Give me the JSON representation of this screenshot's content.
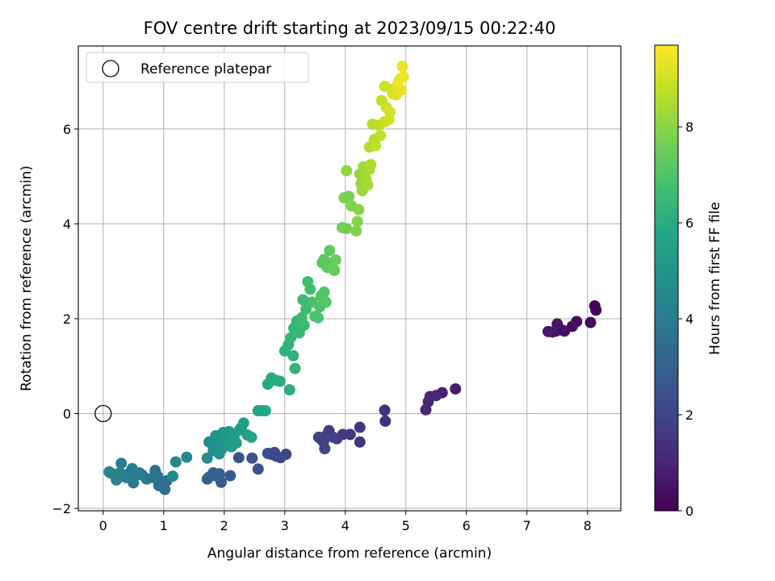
{
  "chart_data": {
    "type": "scatter",
    "title": "FOV centre drift starting at 2023/09/15 00:22:40",
    "xlabel": "Angular distance from reference (arcmin)",
    "ylabel": "Rotation from reference (arcmin)",
    "xlim": [
      -0.41,
      8.55
    ],
    "ylim": [
      -2.05,
      7.75
    ],
    "xticks": [
      0,
      1,
      2,
      3,
      4,
      5,
      6,
      7,
      8
    ],
    "yticks": [
      -2,
      0,
      2,
      4,
      6
    ],
    "grid": true,
    "legend": {
      "position": "top-left",
      "entries": [
        {
          "label": "Reference platepar",
          "marker": "open-circle"
        }
      ]
    },
    "reference_point": {
      "x": 0,
      "y": 0
    },
    "colorbar": {
      "label": "Hours from first FF file",
      "colormap": "viridis",
      "range": [
        0,
        9.7
      ],
      "ticks": [
        0,
        2,
        4,
        6,
        8
      ]
    },
    "points": [
      {
        "x": 8.12,
        "y": 2.27,
        "h": 0.05
      },
      {
        "x": 8.14,
        "y": 2.18,
        "h": 0.1
      },
      {
        "x": 8.05,
        "y": 1.92,
        "h": 0.2
      },
      {
        "x": 7.82,
        "y": 1.94,
        "h": 0.3
      },
      {
        "x": 7.75,
        "y": 1.84,
        "h": 0.35
      },
      {
        "x": 7.58,
        "y": 1.76,
        "h": 0.45
      },
      {
        "x": 7.5,
        "y": 1.89,
        "h": 0.5
      },
      {
        "x": 7.48,
        "y": 1.74,
        "h": 0.55
      },
      {
        "x": 7.42,
        "y": 1.72,
        "h": 0.6
      },
      {
        "x": 7.35,
        "y": 1.73,
        "h": 0.65
      },
      {
        "x": 7.62,
        "y": 1.74,
        "h": 0.4
      },
      {
        "x": 5.82,
        "y": 0.52,
        "h": 0.8
      },
      {
        "x": 5.6,
        "y": 0.44,
        "h": 0.9
      },
      {
        "x": 5.5,
        "y": 0.38,
        "h": 1.0
      },
      {
        "x": 5.4,
        "y": 0.36,
        "h": 1.05
      },
      {
        "x": 5.37,
        "y": 0.25,
        "h": 1.1
      },
      {
        "x": 5.33,
        "y": 0.08,
        "h": 1.15
      },
      {
        "x": 4.65,
        "y": 0.07,
        "h": 1.3
      },
      {
        "x": 4.66,
        "y": -0.16,
        "h": 1.35
      },
      {
        "x": 4.24,
        "y": -0.29,
        "h": 1.45
      },
      {
        "x": 4.24,
        "y": -0.6,
        "h": 1.5
      },
      {
        "x": 4.08,
        "y": -0.44,
        "h": 1.55
      },
      {
        "x": 3.96,
        "y": -0.44,
        "h": 1.6
      },
      {
        "x": 3.86,
        "y": -0.53,
        "h": 1.65
      },
      {
        "x": 3.73,
        "y": -0.36,
        "h": 1.7
      },
      {
        "x": 3.68,
        "y": -0.47,
        "h": 1.75
      },
      {
        "x": 3.64,
        "y": -0.6,
        "h": 1.8
      },
      {
        "x": 3.6,
        "y": -0.54,
        "h": 1.85
      },
      {
        "x": 3.56,
        "y": -0.5,
        "h": 1.9
      },
      {
        "x": 3.66,
        "y": -0.74,
        "h": 1.95
      },
      {
        "x": 3.8,
        "y": -0.5,
        "h": 1.9
      },
      {
        "x": 3.72,
        "y": -0.45,
        "h": 1.85
      },
      {
        "x": 3.02,
        "y": -0.86,
        "h": 2.05
      },
      {
        "x": 2.93,
        "y": -0.93,
        "h": 2.1
      },
      {
        "x": 2.83,
        "y": -0.82,
        "h": 2.15
      },
      {
        "x": 2.78,
        "y": -0.86,
        "h": 2.2
      },
      {
        "x": 2.72,
        "y": -0.84,
        "h": 2.25
      },
      {
        "x": 2.86,
        "y": -0.9,
        "h": 2.1
      },
      {
        "x": 2.56,
        "y": -1.17,
        "h": 2.4
      },
      {
        "x": 2.46,
        "y": -0.94,
        "h": 2.45
      },
      {
        "x": 2.24,
        "y": -0.93,
        "h": 2.6
      },
      {
        "x": 2.1,
        "y": -1.31,
        "h": 2.75
      },
      {
        "x": 1.95,
        "y": -1.45,
        "h": 2.85
      },
      {
        "x": 1.88,
        "y": -1.32,
        "h": 2.9
      },
      {
        "x": 1.82,
        "y": -1.25,
        "h": 3.0
      },
      {
        "x": 1.75,
        "y": -1.34,
        "h": 3.05
      },
      {
        "x": 1.72,
        "y": -1.38,
        "h": 3.1
      },
      {
        "x": 1.92,
        "y": -1.27,
        "h": 3.0
      },
      {
        "x": 1.02,
        "y": -1.6,
        "h": 3.5
      },
      {
        "x": 1.0,
        "y": -1.45,
        "h": 3.55
      },
      {
        "x": 0.92,
        "y": -1.52,
        "h": 3.6
      },
      {
        "x": 0.9,
        "y": -1.32,
        "h": 3.65
      },
      {
        "x": 0.86,
        "y": -1.2,
        "h": 3.7
      },
      {
        "x": 0.82,
        "y": -1.35,
        "h": 3.75
      },
      {
        "x": 0.72,
        "y": -1.38,
        "h": 3.8
      },
      {
        "x": 0.65,
        "y": -1.3,
        "h": 3.85
      },
      {
        "x": 0.55,
        "y": -1.3,
        "h": 3.9
      },
      {
        "x": 0.5,
        "y": -1.46,
        "h": 3.95
      },
      {
        "x": 0.48,
        "y": -1.16,
        "h": 4.0
      },
      {
        "x": 0.44,
        "y": -1.25,
        "h": 4.05
      },
      {
        "x": 0.38,
        "y": -1.35,
        "h": 4.1
      },
      {
        "x": 0.3,
        "y": -1.05,
        "h": 4.15
      },
      {
        "x": 0.28,
        "y": -1.25,
        "h": 4.2
      },
      {
        "x": 0.22,
        "y": -1.4,
        "h": 4.25
      },
      {
        "x": 0.18,
        "y": -1.28,
        "h": 4.3
      },
      {
        "x": 0.12,
        "y": -1.25,
        "h": 4.35
      },
      {
        "x": 0.1,
        "y": -1.23,
        "h": 4.4
      },
      {
        "x": 0.6,
        "y": -1.25,
        "h": 4.0
      },
      {
        "x": 1.05,
        "y": -1.42,
        "h": 3.55
      },
      {
        "x": 1.15,
        "y": -1.32,
        "h": 4.45
      },
      {
        "x": 1.2,
        "y": -1.02,
        "h": 4.5
      },
      {
        "x": 1.38,
        "y": -0.92,
        "h": 4.55
      },
      {
        "x": 1.72,
        "y": -0.94,
        "h": 4.7
      },
      {
        "x": 1.75,
        "y": -0.6,
        "h": 4.75
      },
      {
        "x": 1.82,
        "y": -0.78,
        "h": 4.8
      },
      {
        "x": 1.86,
        "y": -0.47,
        "h": 4.85
      },
      {
        "x": 1.9,
        "y": -0.65,
        "h": 4.9
      },
      {
        "x": 1.92,
        "y": -0.85,
        "h": 4.95
      },
      {
        "x": 1.96,
        "y": -0.75,
        "h": 5.0
      },
      {
        "x": 2.0,
        "y": -0.55,
        "h": 5.05
      },
      {
        "x": 2.03,
        "y": -0.45,
        "h": 5.1
      },
      {
        "x": 2.05,
        "y": -0.62,
        "h": 5.15
      },
      {
        "x": 2.08,
        "y": -0.38,
        "h": 5.2
      },
      {
        "x": 2.12,
        "y": -0.7,
        "h": 5.25
      },
      {
        "x": 2.16,
        "y": -0.48,
        "h": 5.3
      },
      {
        "x": 2.2,
        "y": -0.62,
        "h": 5.35
      },
      {
        "x": 2.25,
        "y": -0.35,
        "h": 5.4
      },
      {
        "x": 2.32,
        "y": -0.2,
        "h": 5.45
      },
      {
        "x": 2.38,
        "y": -0.45,
        "h": 5.5
      },
      {
        "x": 2.45,
        "y": -0.5,
        "h": 5.55
      },
      {
        "x": 1.98,
        "y": -0.4,
        "h": 5.1
      },
      {
        "x": 2.28,
        "y": -0.3,
        "h": 5.4
      },
      {
        "x": 2.56,
        "y": 0.06,
        "h": 5.7
      },
      {
        "x": 2.62,
        "y": 0.06,
        "h": 5.75
      },
      {
        "x": 2.68,
        "y": 0.06,
        "h": 5.8
      },
      {
        "x": 2.72,
        "y": 0.62,
        "h": 5.9
      },
      {
        "x": 2.78,
        "y": 0.75,
        "h": 5.95
      },
      {
        "x": 2.86,
        "y": 0.7,
        "h": 6.0
      },
      {
        "x": 2.92,
        "y": 0.68,
        "h": 6.05
      },
      {
        "x": 3.08,
        "y": 0.5,
        "h": 6.1
      },
      {
        "x": 3.0,
        "y": 1.32,
        "h": 6.15
      },
      {
        "x": 3.06,
        "y": 1.45,
        "h": 6.2
      },
      {
        "x": 3.14,
        "y": 1.22,
        "h": 6.25
      },
      {
        "x": 3.17,
        "y": 0.95,
        "h": 6.3
      },
      {
        "x": 3.1,
        "y": 1.6,
        "h": 6.35
      },
      {
        "x": 3.15,
        "y": 1.8,
        "h": 6.4
      },
      {
        "x": 3.2,
        "y": 1.95,
        "h": 6.45
      },
      {
        "x": 3.24,
        "y": 1.7,
        "h": 6.5
      },
      {
        "x": 3.28,
        "y": 2.02,
        "h": 6.55
      },
      {
        "x": 3.32,
        "y": 1.86,
        "h": 6.6
      },
      {
        "x": 3.35,
        "y": 2.2,
        "h": 6.65
      },
      {
        "x": 3.38,
        "y": 2.78,
        "h": 6.7
      },
      {
        "x": 3.42,
        "y": 2.62,
        "h": 6.75
      },
      {
        "x": 3.45,
        "y": 2.35,
        "h": 6.8
      },
      {
        "x": 3.5,
        "y": 2.05,
        "h": 6.85
      },
      {
        "x": 3.55,
        "y": 2.02,
        "h": 6.9
      },
      {
        "x": 3.58,
        "y": 2.25,
        "h": 6.95
      },
      {
        "x": 3.6,
        "y": 2.48,
        "h": 7.0
      },
      {
        "x": 3.65,
        "y": 2.56,
        "h": 7.05
      },
      {
        "x": 3.68,
        "y": 2.35,
        "h": 7.1
      },
      {
        "x": 3.62,
        "y": 3.18,
        "h": 7.15
      },
      {
        "x": 3.65,
        "y": 3.25,
        "h": 7.2
      },
      {
        "x": 3.7,
        "y": 3.08,
        "h": 7.25
      },
      {
        "x": 3.74,
        "y": 3.44,
        "h": 7.3
      },
      {
        "x": 3.78,
        "y": 3.18,
        "h": 7.35
      },
      {
        "x": 3.82,
        "y": 3.02,
        "h": 7.4
      },
      {
        "x": 3.84,
        "y": 3.24,
        "h": 7.45
      },
      {
        "x": 3.3,
        "y": 2.4,
        "h": 6.6
      },
      {
        "x": 3.95,
        "y": 3.92,
        "h": 7.6
      },
      {
        "x": 4.02,
        "y": 3.9,
        "h": 7.65
      },
      {
        "x": 4.06,
        "y": 4.58,
        "h": 7.7
      },
      {
        "x": 3.98,
        "y": 4.55,
        "h": 7.75
      },
      {
        "x": 4.1,
        "y": 4.38,
        "h": 7.8
      },
      {
        "x": 4.18,
        "y": 3.85,
        "h": 7.85
      },
      {
        "x": 4.2,
        "y": 4.05,
        "h": 7.9
      },
      {
        "x": 4.22,
        "y": 4.3,
        "h": 7.95
      },
      {
        "x": 4.02,
        "y": 5.12,
        "h": 8.1
      },
      {
        "x": 4.24,
        "y": 5.05,
        "h": 8.15
      },
      {
        "x": 4.26,
        "y": 4.85,
        "h": 8.2
      },
      {
        "x": 4.28,
        "y": 4.7,
        "h": 8.25
      },
      {
        "x": 4.3,
        "y": 5.2,
        "h": 8.3
      },
      {
        "x": 4.34,
        "y": 4.95,
        "h": 8.35
      },
      {
        "x": 4.37,
        "y": 4.82,
        "h": 8.4
      },
      {
        "x": 4.4,
        "y": 5.15,
        "h": 8.45
      },
      {
        "x": 4.42,
        "y": 5.25,
        "h": 8.5
      },
      {
        "x": 4.4,
        "y": 5.62,
        "h": 8.55
      },
      {
        "x": 4.45,
        "y": 6.1,
        "h": 8.6
      },
      {
        "x": 4.48,
        "y": 5.78,
        "h": 8.65
      },
      {
        "x": 4.5,
        "y": 5.65,
        "h": 8.7
      },
      {
        "x": 4.55,
        "y": 6.08,
        "h": 8.75
      },
      {
        "x": 4.58,
        "y": 5.86,
        "h": 8.8
      },
      {
        "x": 4.6,
        "y": 6.6,
        "h": 8.85
      },
      {
        "x": 4.65,
        "y": 6.15,
        "h": 8.9
      },
      {
        "x": 4.68,
        "y": 6.45,
        "h": 8.95
      },
      {
        "x": 4.72,
        "y": 6.2,
        "h": 9.0
      },
      {
        "x": 4.74,
        "y": 6.35,
        "h": 9.05
      },
      {
        "x": 4.78,
        "y": 6.75,
        "h": 9.1
      },
      {
        "x": 4.8,
        "y": 6.85,
        "h": 9.15
      },
      {
        "x": 4.84,
        "y": 6.72,
        "h": 9.2
      },
      {
        "x": 4.86,
        "y": 6.88,
        "h": 9.25
      },
      {
        "x": 4.9,
        "y": 7.05,
        "h": 9.3
      },
      {
        "x": 4.92,
        "y": 6.82,
        "h": 9.35
      },
      {
        "x": 4.94,
        "y": 7.32,
        "h": 9.4
      },
      {
        "x": 4.96,
        "y": 7.1,
        "h": 9.45
      },
      {
        "x": 4.65,
        "y": 6.9,
        "h": 9.0
      },
      {
        "x": 4.88,
        "y": 7.0,
        "h": 9.5
      }
    ]
  },
  "colors": {
    "grid": "#b0b0b0",
    "axes": "#000000",
    "reference_marker": "#000000"
  }
}
